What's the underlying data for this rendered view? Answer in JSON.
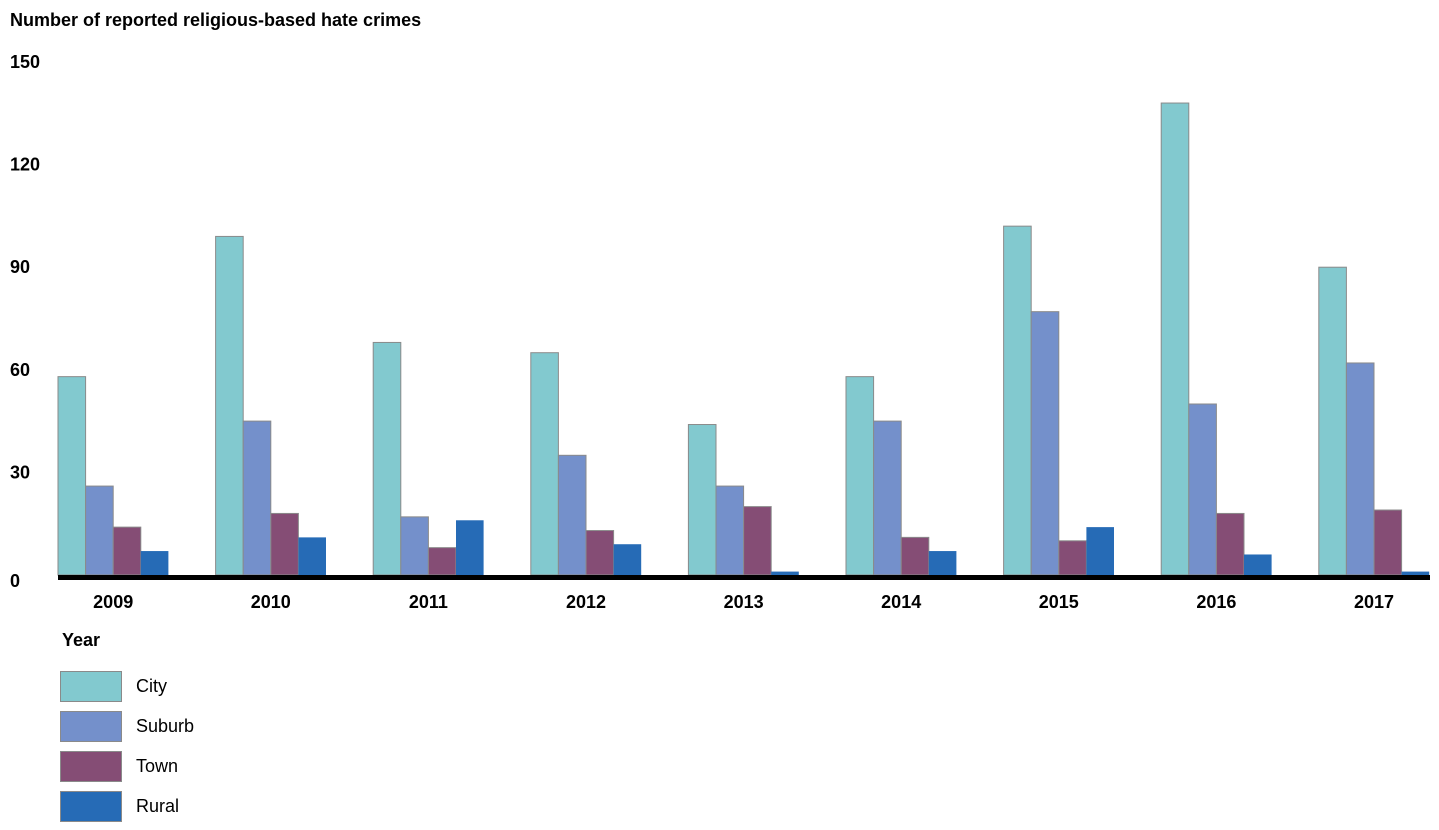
{
  "chart_data": {
    "type": "bar",
    "title": "Number of reported religious-based hate crimes",
    "xlabel": "Year",
    "ylabel": "",
    "ylim": [
      0,
      150
    ],
    "yticks": [
      0,
      30,
      60,
      90,
      120,
      150
    ],
    "grid": false,
    "legend_position": "bottom-left",
    "legend_title": "Year",
    "categories": [
      "2009",
      "2010",
      "2011",
      "2012",
      "2013",
      "2014",
      "2015",
      "2016",
      "2017"
    ],
    "series": [
      {
        "name": "City",
        "color": "#82c9cf",
        "values": [
          58,
          99,
          68,
          65,
          44,
          58,
          102,
          138,
          90
        ]
      },
      {
        "name": "Suburb",
        "color": "#7490cb",
        "values": [
          26,
          45,
          17,
          35,
          26,
          45,
          77,
          50,
          62
        ]
      },
      {
        "name": "Town",
        "color": "#854d75",
        "values": [
          14,
          18,
          8,
          13,
          20,
          11,
          10,
          18,
          19
        ]
      },
      {
        "name": "Rural",
        "color": "#266bb6",
        "values": [
          7,
          11,
          16,
          9,
          1,
          7,
          14,
          6,
          1
        ]
      }
    ]
  }
}
